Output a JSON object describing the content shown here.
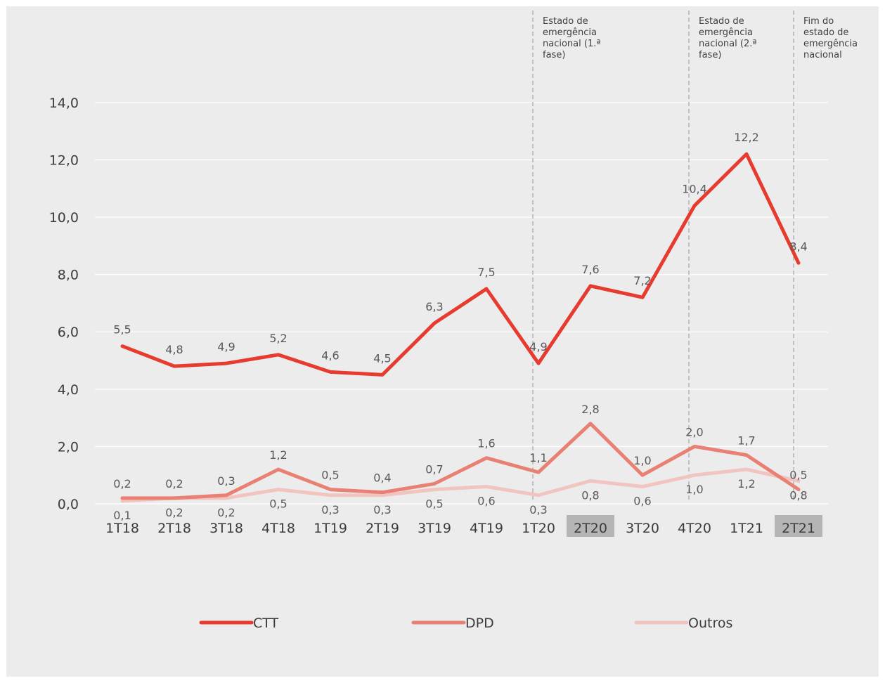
{
  "chart_data": {
    "type": "line",
    "categories": [
      "1T18",
      "2T18",
      "3T18",
      "4T18",
      "1T19",
      "2T19",
      "3T19",
      "4T19",
      "1T20",
      "2T20",
      "3T20",
      "4T20",
      "1T21",
      "2T21"
    ],
    "highlighted_categories": [
      "2T20",
      "2T21"
    ],
    "series": [
      {
        "name": "CTT",
        "color": "#e63b2e",
        "values": [
          5.5,
          4.8,
          4.9,
          5.2,
          4.6,
          4.5,
          6.3,
          7.5,
          4.9,
          7.6,
          7.2,
          10.4,
          12.2,
          8.4
        ],
        "labels": [
          "5,5",
          "4,8",
          "4,9",
          "5,2",
          "4,6",
          "4,5",
          "6,3",
          "7,5",
          "4,9",
          "7,6",
          "7,2",
          "10,4",
          "12,2",
          "8,4"
        ]
      },
      {
        "name": "DPD",
        "color": "#e88074",
        "values": [
          0.2,
          0.2,
          0.3,
          1.2,
          0.5,
          0.4,
          0.7,
          1.6,
          1.1,
          2.8,
          1.0,
          2.0,
          1.7,
          0.5
        ],
        "labels": [
          "0,2",
          "0,2",
          "0,3",
          "1,2",
          "0,5",
          "0,4",
          "0,7",
          "1,6",
          "1,1",
          "2,8",
          "1,0",
          "2,0",
          "1,7",
          "0,5"
        ]
      },
      {
        "name": "Outros",
        "color": "#f2c4bf",
        "values": [
          0.1,
          0.2,
          0.2,
          0.5,
          0.3,
          0.3,
          0.5,
          0.6,
          0.3,
          0.8,
          0.6,
          1.0,
          1.2,
          0.8
        ],
        "labels": [
          "0,1",
          "0,2",
          "0,2",
          "0,5",
          "0,3",
          "0,3",
          "0,5",
          "0,6",
          "0,3",
          "0,8",
          "0,6",
          "1,0",
          "1,2",
          "0,8"
        ]
      }
    ],
    "y_ticks": [
      "0,0",
      "2,0",
      "4,0",
      "6,0",
      "8,0",
      "10,0",
      "12,0",
      "14,0"
    ],
    "ylim": [
      0,
      14
    ],
    "grid": true,
    "legend_position": "bottom",
    "annotations": [
      {
        "at_category": "1T20",
        "text": [
          "Estado de",
          "emergência",
          "nacional (1.ª",
          "fase)"
        ]
      },
      {
        "at_category": "4T20",
        "text": [
          "Estado de",
          "emergência",
          "nacional (2.ª",
          "fase)"
        ]
      },
      {
        "at_category": "2T21",
        "text": [
          "Fim do",
          "estado de",
          "emergência",
          "nacional"
        ]
      }
    ]
  }
}
